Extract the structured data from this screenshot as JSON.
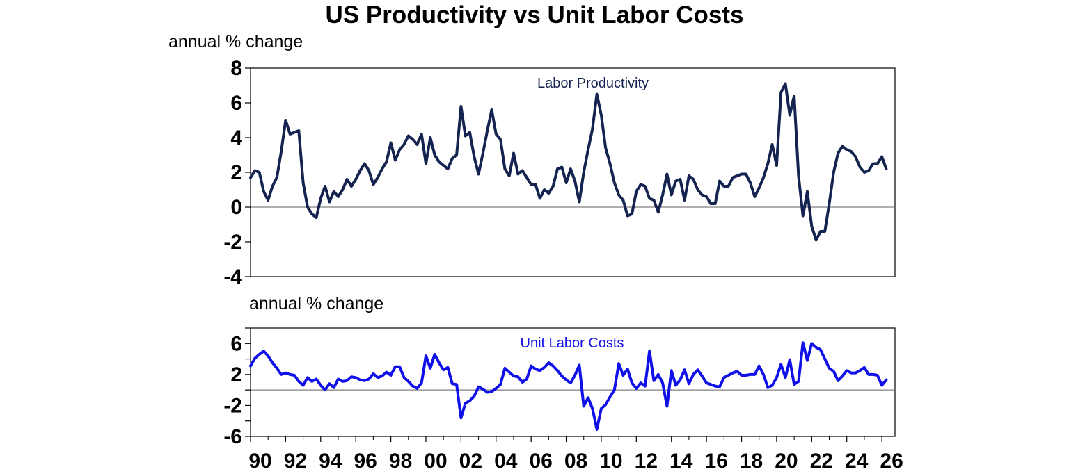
{
  "title": "US Productivity vs Unit Labor Costs",
  "colors": {
    "productivity": "#14234f",
    "ulc": "#1010e8",
    "zero_line": "#808080",
    "frame": "#000000"
  },
  "chart_data": [
    {
      "type": "line",
      "ylabel": "annual % change",
      "ylim": [
        -4,
        8
      ],
      "yticks": [
        "8",
        "6",
        "4",
        "2",
        "0",
        "-2",
        "-4"
      ],
      "grid": false,
      "series": [
        {
          "name": "Labor Productivity",
          "x_start": 1990.0,
          "x_step": 0.25,
          "values": [
            1.7,
            2.1,
            2.0,
            0.9,
            0.4,
            1.2,
            1.7,
            3.2,
            5.0,
            4.2,
            4.3,
            4.4,
            1.4,
            0.0,
            -0.4,
            -0.6,
            0.5,
            1.2,
            0.3,
            0.9,
            0.6,
            1.0,
            1.6,
            1.2,
            1.6,
            2.1,
            2.5,
            2.1,
            1.3,
            1.7,
            2.2,
            2.6,
            3.7,
            2.7,
            3.3,
            3.6,
            4.1,
            3.9,
            3.6,
            4.2,
            2.5,
            4.0,
            3.0,
            2.6,
            2.4,
            2.2,
            2.8,
            3.0,
            5.8,
            4.1,
            4.3,
            2.9,
            1.9,
            3.1,
            4.4,
            5.6,
            4.2,
            3.9,
            2.2,
            1.8,
            3.1,
            1.9,
            2.1,
            1.7,
            1.3,
            1.3,
            0.5,
            1.0,
            0.8,
            1.2,
            2.2,
            2.3,
            1.4,
            2.2,
            1.5,
            0.3,
            2.0,
            3.3,
            4.5,
            6.5,
            5.3,
            3.4,
            2.5,
            1.4,
            0.7,
            0.4,
            -0.5,
            -0.4,
            0.9,
            1.3,
            1.2,
            0.5,
            0.4,
            -0.3,
            0.7,
            1.9,
            0.7,
            1.5,
            1.6,
            0.4,
            1.8,
            1.6,
            1.0,
            0.7,
            0.6,
            0.2,
            0.2,
            1.5,
            1.2,
            1.2,
            1.7,
            1.8,
            1.9,
            1.9,
            1.4,
            0.6,
            1.1,
            1.7,
            2.5,
            3.6,
            2.4,
            6.6,
            7.1,
            5.3,
            6.4,
            1.8,
            -0.5,
            0.9,
            -1.1,
            -1.9,
            -1.4,
            -1.4,
            0.2,
            2.0,
            3.1,
            3.5,
            3.3,
            3.2,
            2.9,
            2.3,
            2.0,
            2.1,
            2.5,
            2.5,
            2.9,
            2.2
          ]
        }
      ]
    },
    {
      "type": "line",
      "ylabel": "annual % change",
      "ylim": [
        -6,
        8
      ],
      "yticks": [
        "6",
        "2",
        "-2",
        "-6"
      ],
      "xticks": [
        "90",
        "92",
        "94",
        "96",
        "98",
        "00",
        "02",
        "04",
        "06",
        "08",
        "10",
        "12",
        "14",
        "16",
        "18",
        "20",
        "22",
        "24",
        "26"
      ],
      "grid": false,
      "series": [
        {
          "name": "Unit Labor Costs",
          "x_start": 1990.0,
          "x_step": 0.25,
          "values": [
            3.1,
            4.1,
            4.6,
            5.0,
            4.4,
            3.5,
            2.8,
            2.0,
            2.2,
            2.0,
            1.9,
            1.1,
            0.6,
            1.6,
            1.1,
            1.4,
            0.6,
            0.0,
            0.8,
            0.3,
            1.4,
            1.1,
            1.2,
            1.7,
            1.6,
            1.3,
            1.2,
            1.4,
            2.1,
            1.6,
            1.8,
            2.3,
            1.9,
            3.0,
            3.0,
            1.6,
            1.1,
            0.5,
            0.2,
            0.9,
            4.4,
            2.8,
            4.6,
            3.5,
            2.6,
            2.9,
            0.8,
            0.7,
            -3.6,
            -1.7,
            -1.4,
            -0.8,
            0.4,
            0.1,
            -0.3,
            -0.2,
            0.2,
            0.7,
            2.8,
            2.3,
            1.8,
            1.7,
            1.0,
            1.4,
            3.1,
            2.7,
            2.5,
            2.9,
            3.5,
            3.1,
            2.5,
            1.8,
            1.3,
            0.9,
            1.9,
            3.2,
            -2.1,
            -1.0,
            -2.4,
            -5.1,
            -2.4,
            -1.9,
            -0.9,
            0.0,
            3.4,
            1.9,
            2.7,
            0.9,
            0.2,
            0.9,
            0.5,
            5.0,
            1.2,
            2.0,
            0.9,
            -2.1,
            2.5,
            0.6,
            1.3,
            2.6,
            0.8,
            2.0,
            2.6,
            1.8,
            0.9,
            0.7,
            0.5,
            0.4,
            1.6,
            1.9,
            2.2,
            2.4,
            1.9,
            1.9,
            2.0,
            2.0,
            3.1,
            2.0,
            0.3,
            0.6,
            1.6,
            3.3,
            1.6,
            3.9,
            0.7,
            1.1,
            6.1,
            3.8,
            6.0,
            5.5,
            5.2,
            4.0,
            2.8,
            2.4,
            1.2,
            1.8,
            2.5,
            2.2,
            2.2,
            2.5,
            2.9,
            2.0,
            2.0,
            1.9,
            0.6,
            1.3
          ]
        }
      ]
    }
  ]
}
